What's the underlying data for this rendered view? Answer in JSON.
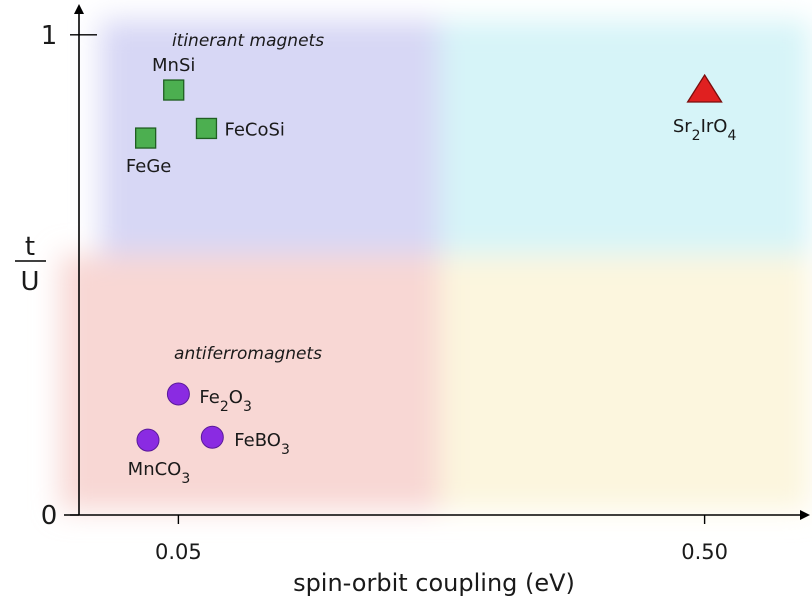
{
  "chart_data": {
    "type": "scatter",
    "title": "",
    "xlabel": "spin-orbit coupling (eV)",
    "ylabel": {
      "numerator": "t",
      "denominator": "U"
    },
    "xticks": [
      {
        "value": 0.05,
        "label": "0.05"
      },
      {
        "value": 0.5,
        "label": "0.50"
      }
    ],
    "yticks": [
      {
        "value": 0,
        "label": "0"
      },
      {
        "value": 1,
        "label": "1"
      }
    ],
    "xlim": [
      -0.035,
      0.585
    ],
    "ylim": [
      0,
      1.06
    ],
    "grid": false,
    "regions": [
      {
        "name": "itinerant magnets",
        "color": "#c9c9f2"
      },
      {
        "name": "antiferromagnets",
        "color": "#f6c9c6"
      },
      {
        "name": "",
        "color": "#c8f0f6"
      },
      {
        "name": "",
        "color": "#fbf3d3"
      }
    ],
    "series": [
      {
        "name": "itinerant magnets",
        "marker": "square",
        "color": "#4caf50",
        "points": [
          {
            "label": "MnSi",
            "x": 0.046,
            "y": 0.885
          },
          {
            "label": "FeCoSi",
            "x": 0.074,
            "y": 0.805
          },
          {
            "label": "FeGe",
            "x": 0.022,
            "y": 0.785
          }
        ]
      },
      {
        "name": "antiferromagnets",
        "marker": "circle",
        "color": "#8a2be2",
        "points": [
          {
            "label": "Fe2O3",
            "x": 0.05,
            "y": 0.252
          },
          {
            "label": "FeBO3",
            "x": 0.079,
            "y": 0.162
          },
          {
            "label": "MnCO3",
            "x": 0.024,
            "y": 0.156
          }
        ]
      },
      {
        "name": "",
        "marker": "triangle",
        "color": "#e02020",
        "points": [
          {
            "label": "Sr2IrO4",
            "x": 0.5,
            "y": 0.885
          }
        ]
      }
    ]
  }
}
